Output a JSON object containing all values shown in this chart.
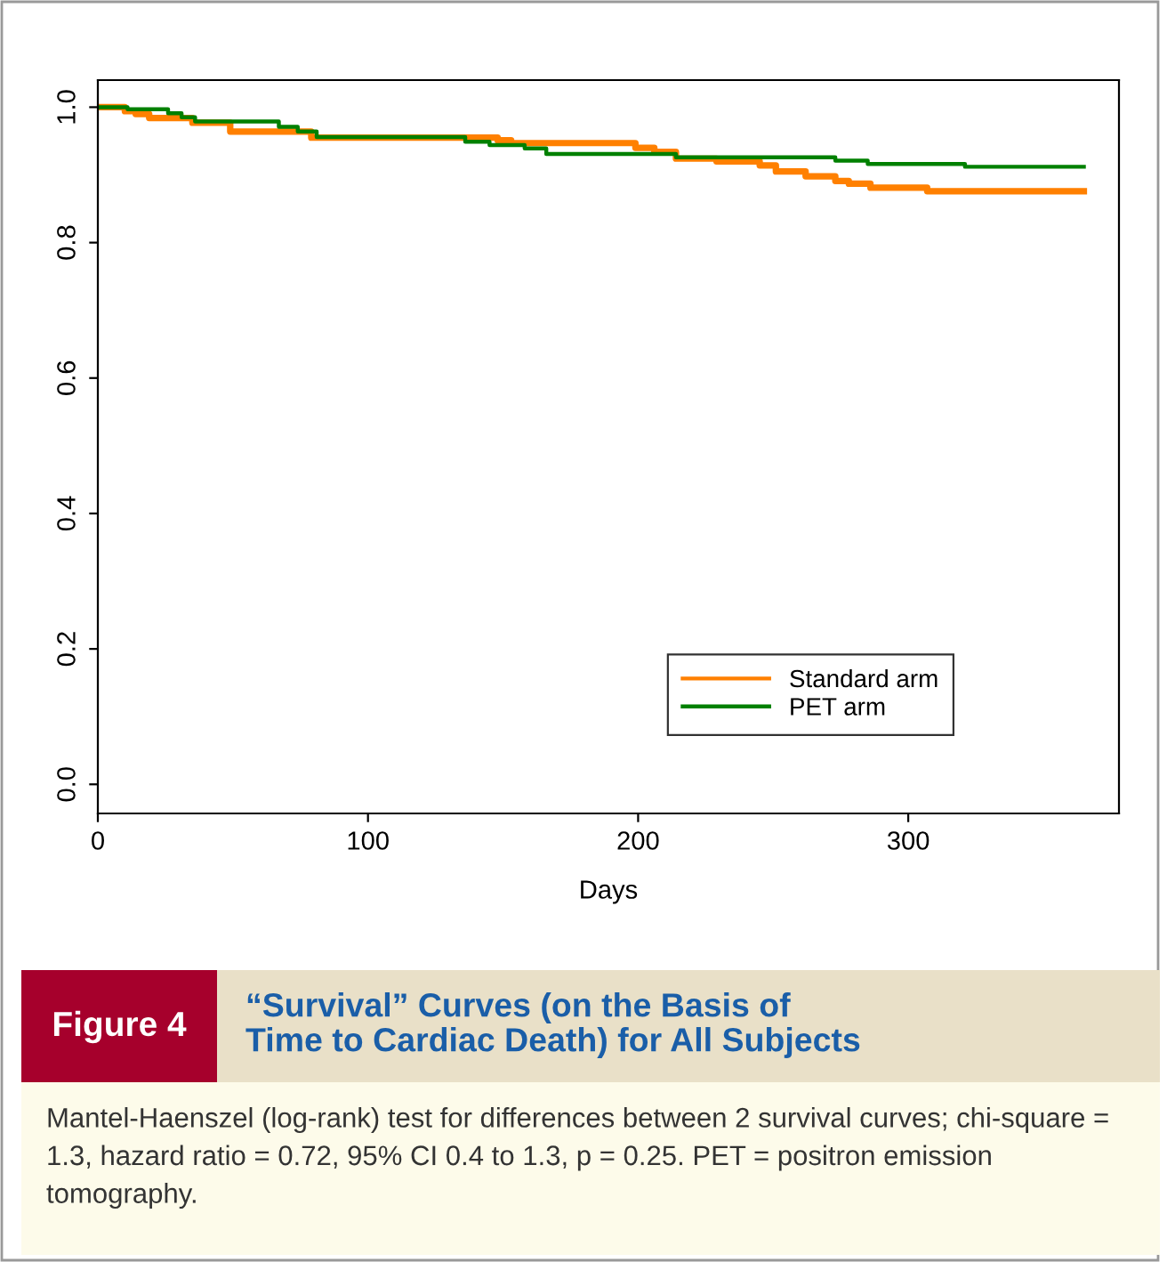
{
  "chart_data": {
    "type": "step",
    "title": "“Survival” Curves (on the Basis of\nTime to Cardiac Death) for All Subjects",
    "xlabel": "Days",
    "annotations": [
      "Figure 4",
      "Mantel-Haenszel (log-rank) test for differences between 2 survival curves; chi-square = 1.3, hazard ratio = 0.72, 95% CI 0.4 to 1.3, p = 0.25. PET = positron emission tomography."
    ],
    "series": [
      {
        "name": "Standard arm",
        "color": "#ff8000",
        "x": [
          0,
          10,
          14,
          19,
          35,
          49,
          79,
          148,
          153,
          199,
          206,
          214,
          229,
          245,
          251,
          262,
          273,
          278,
          286,
          307,
          365
        ],
        "values": [
          1.0,
          0.994,
          0.99,
          0.984,
          0.977,
          0.964,
          0.955,
          0.951,
          0.947,
          0.94,
          0.934,
          0.924,
          0.92,
          0.914,
          0.905,
          0.898,
          0.891,
          0.887,
          0.881,
          0.876,
          0.876
        ]
      },
      {
        "name": "PET arm",
        "color": "#008000",
        "x": [
          0,
          11,
          26,
          31,
          36,
          67,
          74,
          81,
          136,
          145,
          158,
          166,
          214,
          273,
          285,
          321,
          365
        ],
        "values": [
          1.0,
          0.997,
          0.991,
          0.985,
          0.979,
          0.971,
          0.964,
          0.956,
          0.949,
          0.944,
          0.939,
          0.931,
          0.926,
          0.921,
          0.916,
          0.912,
          0.912
        ]
      }
    ],
    "xlim": [
      0,
      378
    ],
    "ylim": [
      -0.043,
      1.04
    ],
    "xticks": [
      0,
      100,
      200,
      300
    ],
    "yticks": [
      {
        "value": 0,
        "label": "0.0"
      },
      {
        "value": 0.2,
        "label": "0.2"
      },
      {
        "value": 0.4,
        "label": "0.4"
      },
      {
        "value": 0.6,
        "label": "0.6"
      },
      {
        "value": 0.8,
        "label": "0.8"
      },
      {
        "value": 1.0,
        "label": "1.0"
      }
    ],
    "legend": "bottom right",
    "grid": false,
    "line_style": "solid",
    "marker": "none"
  }
}
